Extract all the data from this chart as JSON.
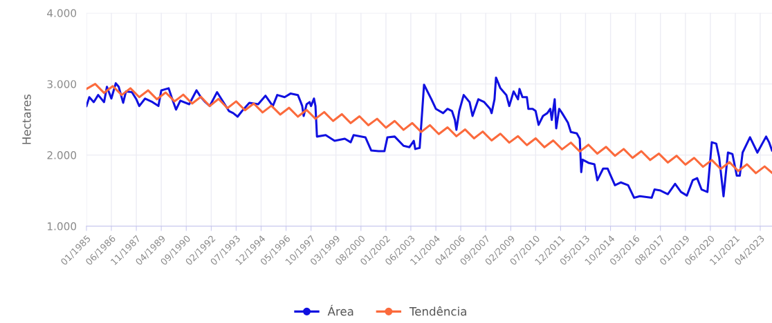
{
  "chart_data": {
    "type": "line",
    "ylabel": "Hectares",
    "xlim": [
      "1985-01",
      "2023-12"
    ],
    "xticks": [
      {
        "value": "1985-01",
        "label": "01/1985"
      },
      {
        "value": "1986-06",
        "label": "06/1986"
      },
      {
        "value": "1987-11",
        "label": "11/1987"
      },
      {
        "value": "1989-04",
        "label": "04/1989"
      },
      {
        "value": "1990-09",
        "label": "09/1990"
      },
      {
        "value": "1992-02",
        "label": "02/1992"
      },
      {
        "value": "1993-07",
        "label": "07/1993"
      },
      {
        "value": "1994-12",
        "label": "12/1994"
      },
      {
        "value": "1996-05",
        "label": "05/1996"
      },
      {
        "value": "1997-10",
        "label": "10/1997"
      },
      {
        "value": "1999-03",
        "label": "03/1999"
      },
      {
        "value": "2000-08",
        "label": "08/2000"
      },
      {
        "value": "2002-01",
        "label": "01/2002"
      },
      {
        "value": "2003-06",
        "label": "06/2003"
      },
      {
        "value": "2004-11",
        "label": "11/2004"
      },
      {
        "value": "2006-04",
        "label": "04/2006"
      },
      {
        "value": "2007-09",
        "label": "09/2007"
      },
      {
        "value": "2009-02",
        "label": "02/2009"
      },
      {
        "value": "2010-07",
        "label": "07/2010"
      },
      {
        "value": "2011-12",
        "label": "12/2011"
      },
      {
        "value": "2013-05",
        "label": "05/2013"
      },
      {
        "value": "2014-10",
        "label": "10/2014"
      },
      {
        "value": "2016-03",
        "label": "03/2016"
      },
      {
        "value": "2017-08",
        "label": "08/2017"
      },
      {
        "value": "2019-01",
        "label": "01/2019"
      },
      {
        "value": "2020-06",
        "label": "06/2020"
      },
      {
        "value": "2021-11",
        "label": "11/2021"
      },
      {
        "value": "2023-04",
        "label": "04/2023"
      }
    ],
    "ylim": [
      1000,
      4000
    ],
    "yticks": [
      {
        "value": 1000,
        "label": "1.000"
      },
      {
        "value": 2000,
        "label": "2.000"
      },
      {
        "value": 3000,
        "label": "3.000"
      },
      {
        "value": 4000,
        "label": "4.000"
      }
    ],
    "grid": true,
    "legend": "bottom",
    "series": [
      {
        "name": "Área",
        "color": "#1010e0",
        "x": [
          "1985-01",
          "1985-03",
          "1985-06",
          "1985-09",
          "1986-01",
          "1986-03",
          "1986-06",
          "1986-09",
          "1986-11",
          "1987-02",
          "1987-04",
          "1987-08",
          "1987-11",
          "1988-01",
          "1988-05",
          "1988-10",
          "1989-02",
          "1989-04",
          "1989-09",
          "1989-11",
          "1990-02",
          "1990-05",
          "1990-11",
          "1991-04",
          "1991-07",
          "1991-10",
          "1992-01",
          "1992-06",
          "1992-09",
          "1993-02",
          "1993-05",
          "1993-08",
          "1993-11",
          "1994-04",
          "1994-10",
          "1995-03",
          "1995-08",
          "1995-11",
          "1996-04",
          "1996-08",
          "1997-01",
          "1997-03",
          "1997-04",
          "1997-05",
          "1997-07",
          "1997-09",
          "1997-10",
          "1997-12",
          "1998-01",
          "1998-02",
          "1998-08",
          "1999-02",
          "1999-09",
          "2000-01",
          "2000-03",
          "2000-11",
          "2001-03",
          "2001-08",
          "2001-12",
          "2002-02",
          "2002-07",
          "2003-01",
          "2003-05",
          "2003-08",
          "2003-09",
          "2003-12",
          "2004-03",
          "2004-08",
          "2004-11",
          "2005-04",
          "2005-07",
          "2005-10",
          "2005-12",
          "2006-01",
          "2006-03",
          "2006-06",
          "2006-10",
          "2006-12",
          "2007-04",
          "2007-08",
          "2007-12",
          "2008-01",
          "2008-03",
          "2008-04",
          "2008-07",
          "2008-11",
          "2009-01",
          "2009-04",
          "2009-07",
          "2009-08",
          "2009-10",
          "2010-01",
          "2010-02",
          "2010-05",
          "2010-07",
          "2010-09",
          "2010-12",
          "2011-03",
          "2011-05",
          "2011-06",
          "2011-08",
          "2011-09",
          "2011-11",
          "2012-01",
          "2012-05",
          "2012-07",
          "2012-11",
          "2013-01",
          "2013-02",
          "2013-03",
          "2013-07",
          "2013-11",
          "2014-01",
          "2014-05",
          "2014-08",
          "2015-01",
          "2015-05",
          "2015-10",
          "2016-02",
          "2016-06",
          "2017-02",
          "2017-04",
          "2017-08",
          "2018-01",
          "2018-06",
          "2018-10",
          "2019-02",
          "2019-06",
          "2019-09",
          "2019-12",
          "2020-04",
          "2020-07",
          "2020-10",
          "2020-12",
          "2021-03",
          "2021-06",
          "2021-09",
          "2021-12",
          "2022-02",
          "2022-04",
          "2022-09",
          "2023-02",
          "2023-08",
          "2023-10",
          "2023-12"
        ],
        "values": [
          2690,
          2815,
          2745,
          2845,
          2745,
          2960,
          2795,
          3010,
          2960,
          2735,
          2895,
          2885,
          2785,
          2690,
          2795,
          2745,
          2690,
          2910,
          2940,
          2815,
          2640,
          2765,
          2715,
          2910,
          2815,
          2745,
          2690,
          2885,
          2785,
          2620,
          2590,
          2540,
          2620,
          2735,
          2715,
          2835,
          2690,
          2845,
          2815,
          2865,
          2845,
          2745,
          2690,
          2550,
          2715,
          2745,
          2690,
          2795,
          2690,
          2260,
          2280,
          2200,
          2230,
          2180,
          2280,
          2250,
          2065,
          2055,
          2055,
          2250,
          2260,
          2130,
          2110,
          2200,
          2085,
          2100,
          2990,
          2785,
          2650,
          2590,
          2650,
          2620,
          2495,
          2355,
          2620,
          2845,
          2745,
          2550,
          2785,
          2745,
          2650,
          2590,
          2785,
          3090,
          2940,
          2845,
          2690,
          2895,
          2785,
          2930,
          2815,
          2815,
          2650,
          2650,
          2620,
          2425,
          2550,
          2590,
          2650,
          2495,
          2785,
          2375,
          2650,
          2590,
          2455,
          2325,
          2305,
          2230,
          1760,
          1935,
          1890,
          1870,
          1645,
          1810,
          1810,
          1575,
          1615,
          1575,
          1400,
          1420,
          1400,
          1515,
          1500,
          1450,
          1595,
          1480,
          1430,
          1645,
          1675,
          1515,
          1480,
          2180,
          2160,
          1965,
          1420,
          2035,
          2015,
          1710,
          1710,
          2035,
          2250,
          2035,
          2260,
          2180,
          2065
        ]
      },
      {
        "name": "Tendência",
        "color": "#fb6a3c",
        "x": [
          "1985-01",
          "1985-07",
          "1986-01",
          "1986-07",
          "1987-01",
          "1987-07",
          "1988-01",
          "1988-07",
          "1989-01",
          "1989-07",
          "1990-01",
          "1990-07",
          "1991-01",
          "1991-07",
          "1992-01",
          "1992-07",
          "1993-01",
          "1993-07",
          "1994-01",
          "1994-07",
          "1995-01",
          "1995-07",
          "1996-01",
          "1996-07",
          "1997-01",
          "1997-07",
          "1998-01",
          "1998-07",
          "1999-01",
          "1999-07",
          "2000-01",
          "2000-07",
          "2001-01",
          "2001-07",
          "2002-01",
          "2002-07",
          "2003-01",
          "2003-07",
          "2004-01",
          "2004-07",
          "2005-01",
          "2005-07",
          "2006-01",
          "2006-07",
          "2007-01",
          "2007-07",
          "2008-01",
          "2008-07",
          "2009-01",
          "2009-07",
          "2010-01",
          "2010-07",
          "2011-01",
          "2011-07",
          "2012-01",
          "2012-07",
          "2013-01",
          "2013-07",
          "2014-01",
          "2014-07",
          "2015-01",
          "2015-07",
          "2016-01",
          "2016-07",
          "2017-01",
          "2017-07",
          "2018-01",
          "2018-07",
          "2019-01",
          "2019-07",
          "2020-01",
          "2020-07",
          "2021-01",
          "2021-07",
          "2022-01",
          "2022-07",
          "2023-01",
          "2023-07",
          "2023-12"
        ],
        "values": [
          2930,
          3000,
          2875,
          2970,
          2845,
          2940,
          2815,
          2910,
          2785,
          2880,
          2755,
          2850,
          2725,
          2820,
          2690,
          2790,
          2660,
          2755,
          2630,
          2725,
          2600,
          2695,
          2570,
          2665,
          2540,
          2635,
          2510,
          2605,
          2480,
          2575,
          2450,
          2545,
          2420,
          2510,
          2385,
          2480,
          2355,
          2450,
          2325,
          2420,
          2295,
          2390,
          2265,
          2360,
          2235,
          2330,
          2205,
          2300,
          2175,
          2265,
          2140,
          2235,
          2110,
          2205,
          2080,
          2175,
          2050,
          2145,
          2020,
          2115,
          1990,
          2085,
          1960,
          2055,
          1930,
          2020,
          1895,
          1990,
          1865,
          1960,
          1835,
          1930,
          1805,
          1900,
          1775,
          1870,
          1745,
          1840,
          1750
        ]
      }
    ]
  }
}
